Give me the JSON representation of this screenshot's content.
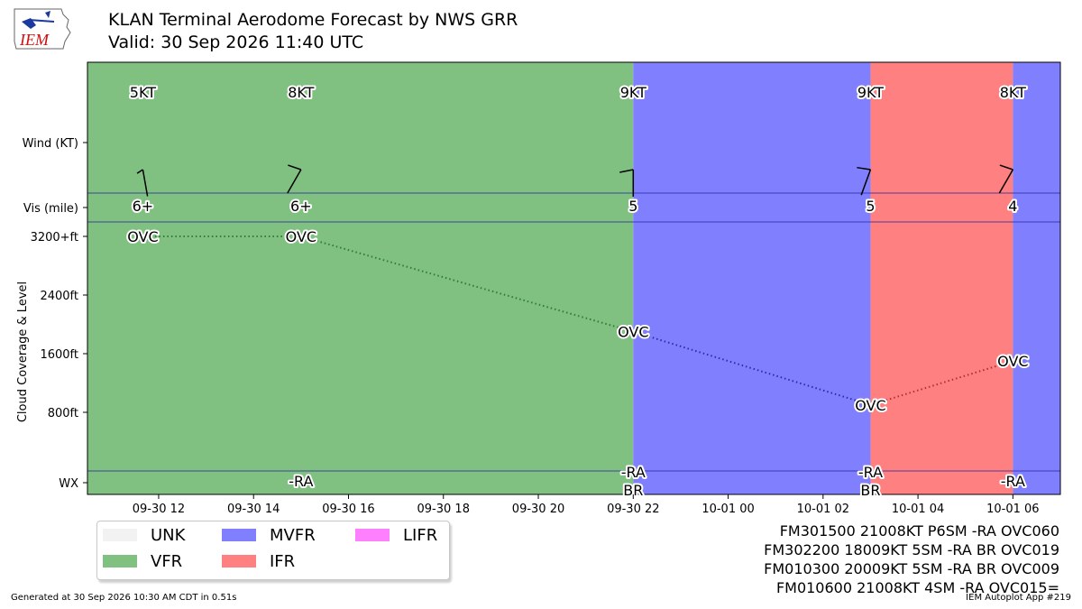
{
  "header": {
    "logo_text": "IEM",
    "title": "KLAN Terminal Aerodome Forecast by NWS GRR",
    "subtitle": "Valid: 30 Sep 2026 11:40 UTC"
  },
  "chart_data": {
    "type": "line",
    "x_axis": {
      "range": [
        "2026-09-30 10:30",
        "2026-10-01 07:00"
      ],
      "tick_labels": [
        "09-30 12",
        "09-30 14",
        "09-30 16",
        "09-30 18",
        "09-30 20",
        "09-30 22",
        "10-01 00",
        "10-01 02",
        "10-01 04",
        "10-01 06"
      ],
      "tick_times": [
        "2026-09-30 12:00",
        "2026-09-30 14:00",
        "2026-09-30 16:00",
        "2026-09-30 18:00",
        "2026-09-30 20:00",
        "2026-09-30 22:00",
        "2026-10-01 00:00",
        "2026-10-01 02:00",
        "2026-10-01 04:00",
        "2026-10-01 06:00"
      ]
    },
    "y_axis": {
      "label": "Cloud Coverage & Level",
      "tick_labels": [
        "3200+ft",
        "2400ft",
        "1600ft",
        "800ft"
      ],
      "tick_values": [
        3200,
        2400,
        1600,
        800
      ],
      "range": [
        -1000,
        3400
      ]
    },
    "row_labels": {
      "wind": "Wind (KT)",
      "vis": "Vis (mile)",
      "wx": "WX"
    },
    "category_bands": [
      {
        "from": "2026-09-30 10:30",
        "to": "2026-09-30 22:00",
        "category": "VFR",
        "color": "#80c080"
      },
      {
        "from": "2026-09-30 22:00",
        "to": "2026-10-01 03:00",
        "category": "MVFR",
        "color": "#8080ff"
      },
      {
        "from": "2026-10-01 03:00",
        "to": "2026-10-01 06:00",
        "category": "IFR",
        "color": "#ff8080"
      },
      {
        "from": "2026-10-01 06:00",
        "to": "2026-10-01 07:00",
        "category": "MVFR",
        "color": "#8080ff"
      }
    ],
    "forecasts": [
      {
        "time": "2026-09-30 11:40",
        "wind_label": "5KT",
        "wind_dir": 170,
        "wind_kt": 5,
        "vis_label": "6+",
        "cloud_label": "OVC",
        "cloud_ft": 3200,
        "wx_lines": []
      },
      {
        "time": "2026-09-30 15:00",
        "wind_label": "8KT",
        "wind_dir": 210,
        "wind_kt": 8,
        "vis_label": "6+",
        "cloud_label": "OVC",
        "cloud_ft": 3200,
        "wx_lines": [
          "-RA"
        ]
      },
      {
        "time": "2026-09-30 22:00",
        "wind_label": "9KT",
        "wind_dir": 180,
        "wind_kt": 9,
        "vis_label": "5",
        "cloud_label": "OVC",
        "cloud_ft": 1900,
        "wx_lines": [
          "-RA",
          "BR"
        ]
      },
      {
        "time": "2026-10-01 03:00",
        "wind_label": "9KT",
        "wind_dir": 200,
        "wind_kt": 9,
        "vis_label": "5",
        "cloud_label": "OVC",
        "cloud_ft": 900,
        "wx_lines": [
          "-RA",
          "BR"
        ]
      },
      {
        "time": "2026-10-01 06:00",
        "wind_label": "8KT",
        "wind_dir": 210,
        "wind_kt": 8,
        "vis_label": "4",
        "cloud_label": "OVC",
        "cloud_ft": 1500,
        "wx_lines": [
          "-RA"
        ]
      }
    ],
    "segment_colors": [
      "#2e7d32",
      "#2e7d32",
      "#2a2ab0",
      "#b03030"
    ]
  },
  "legend": {
    "placement": "bottom-left",
    "items": [
      {
        "label": "UNK",
        "color": "#f2f2f2"
      },
      {
        "label": "MVFR",
        "color": "#8080ff"
      },
      {
        "label": "LIFR",
        "color": "#ff80ff"
      },
      {
        "label": "VFR",
        "color": "#80c080"
      },
      {
        "label": "IFR",
        "color": "#ff8080"
      }
    ]
  },
  "taf_text": [
    "FM301500 21008KT P6SM -RA OVC060",
    "FM302200 18009KT 5SM -RA BR OVC019",
    "FM010300 20009KT 5SM -RA BR OVC009",
    "FM010600 21008KT 4SM -RA OVC015="
  ],
  "footer": {
    "generated": "Generated at 30 Sep 2026 10:30 AM CDT in 0.51s",
    "app": "IEM Autoplot App #219"
  }
}
